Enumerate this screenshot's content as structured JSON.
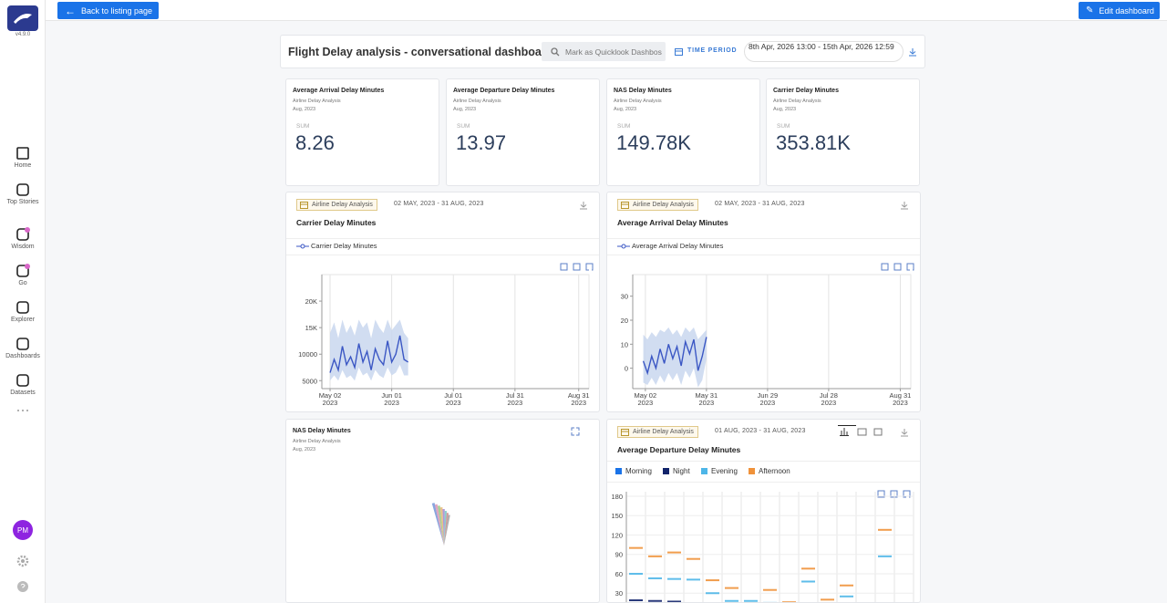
{
  "app": {
    "version": "v4.9.0",
    "nav": [
      "Home",
      "Top Stories",
      "Wisdom",
      "Go",
      "Explorer",
      "Dashboards",
      "Datasets"
    ],
    "avatar": "PM"
  },
  "toolbar": {
    "back": "Back to listing page",
    "edit": "Edit dashboard"
  },
  "dashboard": {
    "title": "Flight Delay analysis - conversational dashboard",
    "search_placeholder": "Mark as Quicklook Dashbos",
    "time_label": "TIME PERIOD",
    "time_range": "8th Apr, 2026 13:00 - 15th Apr, 2026 12:59"
  },
  "kpis": [
    {
      "title": "Average Arrival Delay Minutes",
      "dataset": "Airline Delay Analysis",
      "period": "Aug, 2023",
      "agg": "SUM",
      "value": 8.26
    },
    {
      "title": "Average Departure Delay Minutes",
      "dataset": "Airline Delay Analysis",
      "period": "Aug, 2023",
      "agg": "SUM",
      "value": 13.97
    },
    {
      "title": "NAS Delay Minutes",
      "dataset": "Airline Delay Analysis",
      "period": "Aug, 2023",
      "agg": "SUM",
      "value": "149.78K"
    },
    {
      "title": "Carrier Delay Minutes",
      "dataset": "Airline Delay Analysis",
      "period": "Aug, 2023",
      "agg": "SUM",
      "value": "353.81K"
    }
  ],
  "charts": [
    {
      "type": "line",
      "title": "Carrier Delay Minutes",
      "dataset": "Airline Delay Analysis",
      "date_range": "02 MAY, 2023 - 31 AUG, 2023",
      "grid": true,
      "x": [
        "2023-05-02",
        "2023-05-04",
        "2023-05-06",
        "2023-05-08",
        "2023-05-10",
        "2023-05-12",
        "2023-05-14",
        "2023-05-16",
        "2023-05-18",
        "2023-05-20",
        "2023-05-22",
        "2023-05-24",
        "2023-05-26",
        "2023-05-28",
        "2023-05-30",
        "2023-06-01",
        "2023-06-03",
        "2023-06-05",
        "2023-06-07",
        "2023-06-09"
      ],
      "series": [
        {
          "name": "Carrier Delay Minutes",
          "color": "#3b57c4",
          "values": [
            6500,
            9000,
            7000,
            11500,
            8000,
            9500,
            7500,
            12000,
            8500,
            10500,
            7000,
            11000,
            9000,
            8000,
            12500,
            8500,
            10000,
            13500,
            9000,
            8500
          ]
        }
      ],
      "band": {
        "color": "#c9d7ef",
        "lower": [
          5000,
          6000,
          5000,
          7000,
          5500,
          6000,
          5000,
          7500,
          6000,
          6500,
          5000,
          7000,
          6000,
          5500,
          7500,
          6000,
          6500,
          8000,
          6000,
          6000
        ],
        "upper": [
          14000,
          16000,
          13000,
          16500,
          14000,
          15500,
          13500,
          16500,
          15000,
          16000,
          13000,
          16500,
          15000,
          14000,
          16500,
          14500,
          15500,
          16500,
          14000,
          13000
        ]
      },
      "xlim": [
        "2023-04-28",
        "2023-09-05"
      ],
      "xticks": [
        {
          "value": "2023-05-02",
          "label": "May 02 2023"
        },
        {
          "value": "2023-06-01",
          "label": "Jun 01 2023"
        },
        {
          "value": "2023-07-01",
          "label": "Jul 01 2023"
        },
        {
          "value": "2023-07-31",
          "label": "Jul 31 2023"
        },
        {
          "value": "2023-08-31",
          "label": "Aug 31 2023"
        }
      ],
      "ylim": [
        3500,
        25000
      ],
      "yticks": [
        5000,
        10000,
        {
          "value": 15000,
          "label": "15K"
        },
        {
          "value": 20000,
          "label": "20K"
        }
      ]
    },
    {
      "type": "line",
      "title": "Average Arrival Delay Minutes",
      "dataset": "Airline Delay Analysis",
      "date_range": "02 MAY, 2023 - 31 AUG, 2023",
      "grid": true,
      "x": [
        "2023-05-01",
        "2023-05-03",
        "2023-05-05",
        "2023-05-07",
        "2023-05-09",
        "2023-05-11",
        "2023-05-13",
        "2023-05-15",
        "2023-05-17",
        "2023-05-19",
        "2023-05-21",
        "2023-05-23",
        "2023-05-25",
        "2023-05-27",
        "2023-05-29",
        "2023-05-31"
      ],
      "series": [
        {
          "name": "Average Arrival Delay Minutes",
          "color": "#3b57c4",
          "values": [
            3,
            -2,
            5,
            0,
            8,
            2,
            10,
            4,
            9,
            1,
            11,
            6,
            12,
            -1,
            5,
            13
          ]
        }
      ],
      "band": {
        "color": "#c9d7ef",
        "lower": [
          -6,
          -7,
          -4,
          -7,
          -3,
          -6,
          -2,
          -5,
          -2,
          -7,
          -1,
          -4,
          0,
          -8,
          -5,
          4
        ],
        "upper": [
          14,
          12,
          15,
          13,
          16,
          15,
          17,
          14,
          16,
          13,
          17,
          15,
          17,
          12,
          14,
          16
        ]
      },
      "xlim": [
        "2023-04-26",
        "2023-09-05"
      ],
      "xticks": [
        {
          "value": "2023-05-02",
          "label": "May 02 2023"
        },
        {
          "value": "2023-05-31",
          "label": "May 31 2023"
        },
        {
          "value": "2023-06-29",
          "label": "Jun 29 2023"
        },
        {
          "value": "2023-07-28",
          "label": "Jul 28 2023"
        },
        {
          "value": "2023-08-31",
          "label": "Aug 31 2023"
        }
      ],
      "ylim": [
        -8.5,
        39
      ],
      "yticks": [
        0,
        10,
        20,
        30
      ]
    },
    {
      "type": "pie",
      "title": "NAS Delay Minutes",
      "dataset": "Airline Delay Analysis",
      "period": "Aug, 2023"
    },
    {
      "type": "bar",
      "title": "Average Departure Delay Minutes",
      "dataset": "Airline Delay Analysis",
      "date_range": "01 AUG, 2023 - 31 AUG, 2023",
      "categories": [
        null,
        null,
        null,
        null,
        null,
        null,
        null,
        null,
        null,
        null,
        null,
        null,
        null,
        null,
        null
      ],
      "series": [
        {
          "name": "Morning",
          "color": "#1a73e8",
          "values": [
            null,
            null,
            null,
            null,
            null,
            null,
            null,
            null,
            null,
            null,
            null,
            null,
            null,
            null,
            null
          ]
        },
        {
          "name": "Night",
          "color": "#12246b",
          "values": [
            19,
            18,
            17,
            null,
            null,
            null,
            null,
            null,
            null,
            null,
            null,
            null,
            null,
            null,
            null
          ]
        },
        {
          "name": "Evening",
          "color": "#4db6e8",
          "values": [
            60,
            53,
            52,
            51,
            30,
            18,
            18,
            15,
            null,
            48,
            null,
            25,
            null,
            87,
            null
          ]
        },
        {
          "name": "Afternoon",
          "color": "#f0923a",
          "values": [
            100,
            87,
            93,
            83,
            50,
            38,
            null,
            35,
            16,
            68,
            20,
            42,
            null,
            128,
            null
          ]
        }
      ],
      "ylim": [
        0,
        187
      ],
      "yticks": [
        30,
        60,
        90,
        120,
        150,
        180
      ]
    }
  ]
}
